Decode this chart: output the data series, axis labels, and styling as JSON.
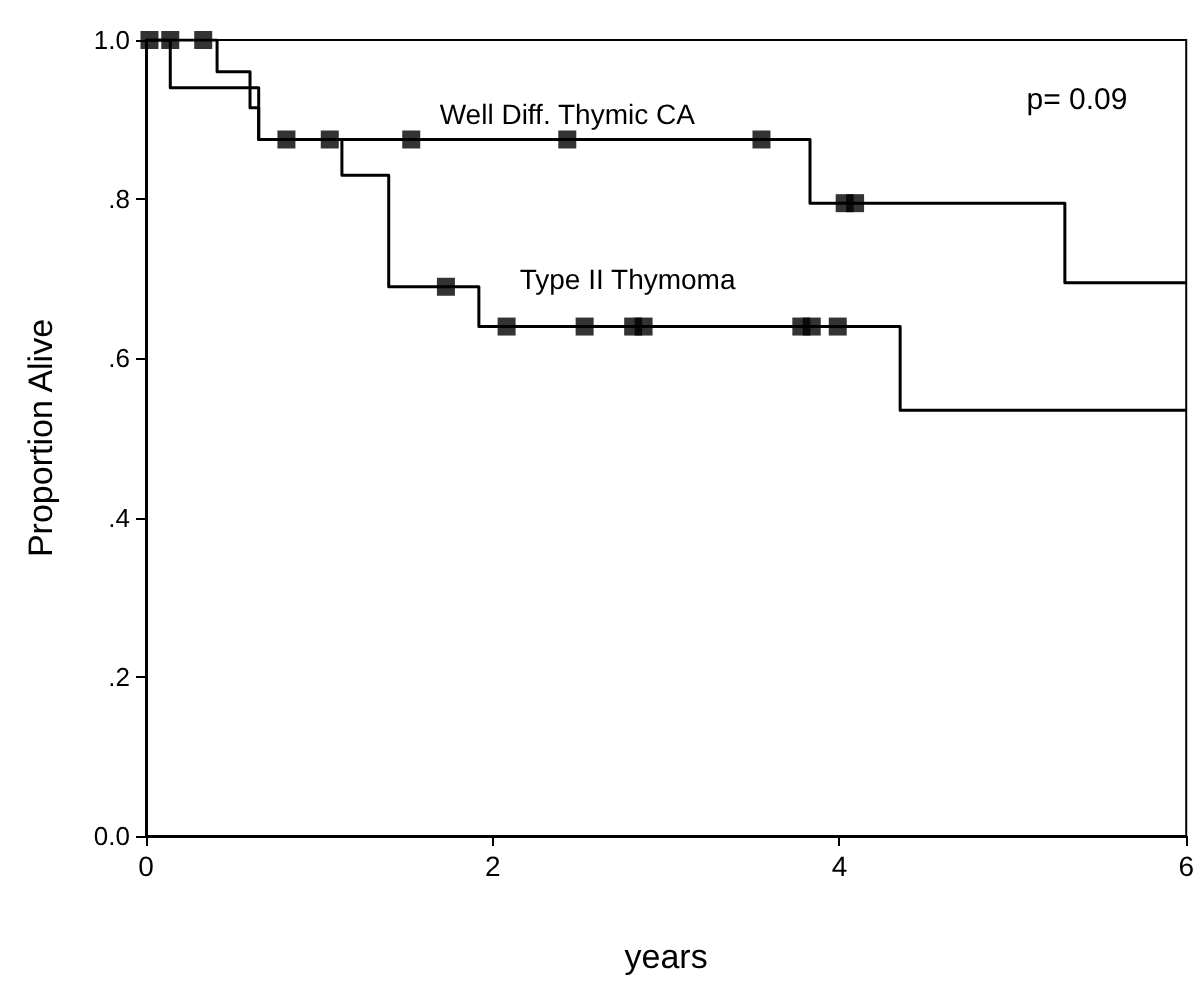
{
  "chart_data": {
    "type": "step",
    "xlabel": "years",
    "ylabel": "Proportion Alive",
    "xlim": [
      0,
      6
    ],
    "xticks": [
      0,
      2,
      4,
      6
    ],
    "ylim": [
      0,
      1
    ],
    "yticks": [
      {
        "value": 0,
        "label": "0.0"
      },
      {
        "value": 0.2,
        "label": ".2"
      },
      {
        "value": 0.4,
        "label": ".4"
      },
      {
        "value": 0.6,
        "label": ".6"
      },
      {
        "value": 0.8,
        "label": ".8"
      },
      {
        "value": 1,
        "label": "1.0"
      }
    ],
    "grid": false,
    "series": [
      {
        "color": "#000000",
        "x": [
          0,
          0.41,
          0.6,
          0.65,
          3.83,
          5.3,
          6
        ],
        "values": [
          1,
          0.96,
          0.94,
          0.875,
          0.795,
          0.695,
          0.695
        ]
      },
      {
        "color": "#000000",
        "x": [
          0,
          0.14,
          0.6,
          0.65,
          1.13,
          1.4,
          1.92,
          4.35,
          6
        ],
        "values": [
          1,
          0.94,
          0.915,
          0.875,
          0.83,
          0.69,
          0.64,
          0.535,
          0.535
        ]
      },
      {
        "type": "scatter",
        "marker": "square",
        "color": "#000000",
        "x": [
          0.02,
          0.14,
          0.33,
          0.81,
          1.06,
          1.53,
          2.43,
          3.55,
          4.03,
          4.09
        ],
        "values": [
          1,
          1,
          1,
          0.875,
          0.875,
          0.875,
          0.875,
          0.875,
          0.795,
          0.795
        ]
      },
      {
        "type": "scatter",
        "marker": "square",
        "color": "#000000",
        "x": [
          1.73,
          2.08,
          2.53,
          2.81,
          2.87,
          3.78,
          3.84,
          3.99
        ],
        "values": [
          0.69,
          0.64,
          0.64,
          0.64,
          0.64,
          0.64,
          0.64,
          0.64
        ]
      }
    ],
    "annotations": [
      "p= 0.09",
      "Well Diff. Thymic CA",
      "Type II Thymoma"
    ]
  }
}
